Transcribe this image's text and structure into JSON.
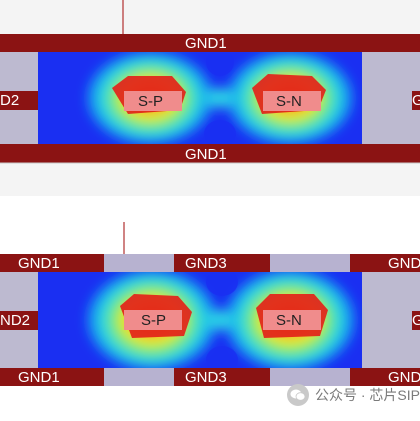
{
  "panels": [
    {
      "top_left_label": "",
      "top_center_label": "GND1",
      "top_right_label": "",
      "left_edge_label": "D2",
      "right_edge_label": "G",
      "signal_left": "S-P",
      "signal_right": "S-N",
      "bottom_left_label": "",
      "bottom_center_label": "GND1",
      "bottom_right_label": ""
    },
    {
      "top_left_label": "GND1",
      "top_center_label": "GND3",
      "top_right_label": "GND",
      "left_edge_label": "ND2",
      "right_edge_label": "G",
      "signal_left": "S-P",
      "signal_right": "S-N",
      "bottom_left_label": "GND1",
      "bottom_center_label": "GND3",
      "bottom_right_label": "GND"
    }
  ],
  "watermark": {
    "icon": "wechat-icon",
    "text": "公众号 · 芯片SIP"
  },
  "colors": {
    "ground_plane": "#8b1313",
    "gap_fill": "#b7b2d0",
    "field_low": "#1a2ff2",
    "signal_trace": "#f08c8c"
  }
}
